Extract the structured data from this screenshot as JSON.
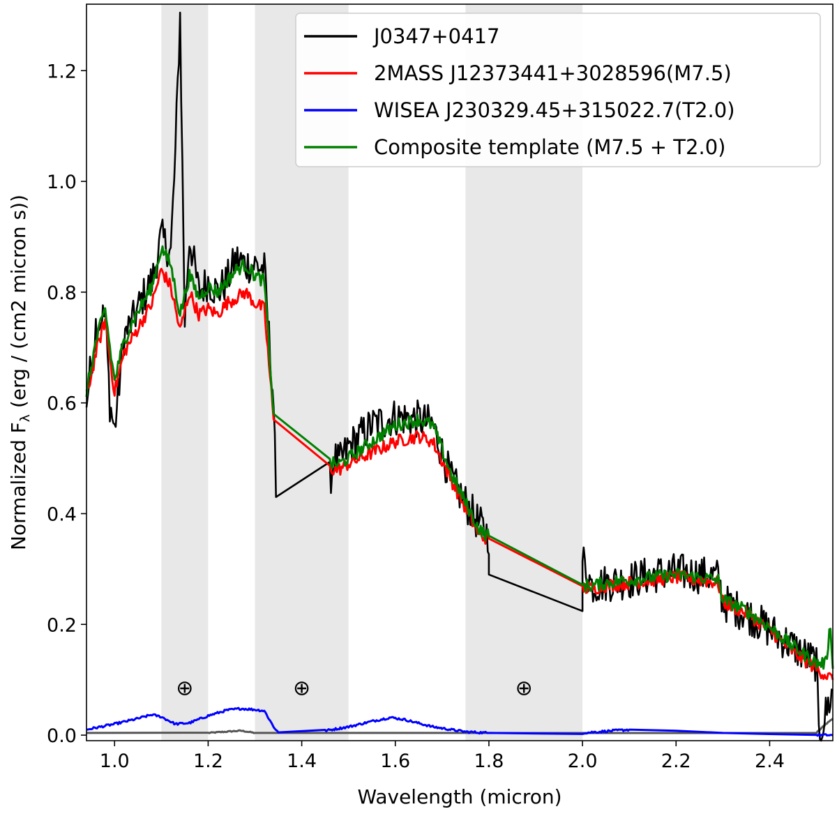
{
  "chart_data": {
    "type": "line",
    "title": "",
    "xlabel": "Wavelength (micron)",
    "ylabel": "Normalized Fλ (erg / (cm2 micron s))",
    "ylabel_main": "Normalized F",
    "ylabel_sub": "λ",
    "ylabel_rest": " (erg / (cm2 micron s))",
    "xlim": [
      0.94,
      2.535
    ],
    "ylim": [
      -0.01,
      1.32
    ],
    "xticks": [
      1.0,
      1.2,
      1.4,
      1.6,
      1.8,
      2.0,
      2.2,
      2.4
    ],
    "xtick_labels": [
      "1.0",
      "1.2",
      "1.4",
      "1.6",
      "1.8",
      "2.0",
      "2.2",
      "2.4"
    ],
    "yticks": [
      0.0,
      0.2,
      0.4,
      0.6,
      0.8,
      1.0,
      1.2
    ],
    "ytick_labels": [
      "0.0",
      "0.2",
      "0.4",
      "0.6",
      "0.8",
      "1.0",
      "1.2"
    ],
    "grid": false,
    "legend_position": "top-right",
    "shaded_bands": [
      {
        "x0": 1.1,
        "x1": 1.2,
        "marker": "⊕",
        "marker_x": 1.15,
        "marker_y": 0.085
      },
      {
        "x0": 1.3,
        "x1": 1.5,
        "marker": "⊕",
        "marker_x": 1.4,
        "marker_y": 0.085
      },
      {
        "x0": 1.75,
        "x1": 2.0,
        "marker": "⊕",
        "marker_x": 1.875,
        "marker_y": 0.085
      }
    ],
    "band_color": "#e8e8e8",
    "series": [
      {
        "name": "J0347+0417",
        "color": "#000000",
        "noise": 0.035,
        "points": [
          [
            0.94,
            0.6
          ],
          [
            0.96,
            0.74
          ],
          [
            0.98,
            0.76
          ],
          [
            0.99,
            0.6
          ],
          [
            1.0,
            0.55
          ],
          [
            1.02,
            0.72
          ],
          [
            1.04,
            0.75
          ],
          [
            1.06,
            0.79
          ],
          [
            1.08,
            0.82
          ],
          [
            1.1,
            0.9
          ],
          [
            1.12,
            0.87
          ],
          [
            1.13,
            1.05
          ],
          [
            1.14,
            1.3
          ],
          [
            1.15,
            0.75
          ],
          [
            1.16,
            0.9
          ],
          [
            1.18,
            0.8
          ],
          [
            1.2,
            0.82
          ],
          [
            1.22,
            0.8
          ],
          [
            1.24,
            0.82
          ],
          [
            1.26,
            0.86
          ],
          [
            1.28,
            0.85
          ],
          [
            1.3,
            0.85
          ],
          [
            1.32,
            0.84
          ],
          [
            1.34,
            0.6
          ],
          [
            1.345,
            0.43
          ],
          [
            1.46,
            0.46
          ],
          [
            1.47,
            0.5
          ],
          [
            1.48,
            0.49
          ],
          [
            1.5,
            0.52
          ],
          [
            1.55,
            0.56
          ],
          [
            1.6,
            0.575
          ],
          [
            1.65,
            0.57
          ],
          [
            1.68,
            0.56
          ],
          [
            1.72,
            0.46
          ],
          [
            1.78,
            0.38
          ],
          [
            1.8,
            0.36
          ],
          [
            1.8,
            0.29
          ],
          [
            2.0,
            0.2
          ],
          [
            2.0,
            0.32
          ],
          [
            2.02,
            0.27
          ],
          [
            2.05,
            0.275
          ],
          [
            2.1,
            0.28
          ],
          [
            2.15,
            0.29
          ],
          [
            2.2,
            0.295
          ],
          [
            2.25,
            0.29
          ],
          [
            2.29,
            0.285
          ],
          [
            2.3,
            0.24
          ],
          [
            2.35,
            0.22
          ],
          [
            2.4,
            0.19
          ],
          [
            2.45,
            0.16
          ],
          [
            2.5,
            0.13
          ],
          [
            2.505,
            0.0
          ],
          [
            2.535,
            0.08
          ]
        ]
      },
      {
        "name": "2MASS J12373441+3028596(M7.5)",
        "color": "#ff0000",
        "noise": 0.012,
        "points": [
          [
            0.94,
            0.61
          ],
          [
            0.96,
            0.69
          ],
          [
            0.98,
            0.75
          ],
          [
            0.99,
            0.68
          ],
          [
            1.0,
            0.62
          ],
          [
            1.02,
            0.69
          ],
          [
            1.04,
            0.72
          ],
          [
            1.06,
            0.75
          ],
          [
            1.08,
            0.78
          ],
          [
            1.1,
            0.84
          ],
          [
            1.12,
            0.81
          ],
          [
            1.14,
            0.73
          ],
          [
            1.16,
            0.8
          ],
          [
            1.18,
            0.76
          ],
          [
            1.2,
            0.77
          ],
          [
            1.22,
            0.76
          ],
          [
            1.24,
            0.78
          ],
          [
            1.26,
            0.79
          ],
          [
            1.28,
            0.8
          ],
          [
            1.3,
            0.78
          ],
          [
            1.32,
            0.77
          ],
          [
            1.34,
            0.57
          ],
          [
            1.46,
            0.48
          ],
          [
            1.48,
            0.48
          ],
          [
            1.5,
            0.49
          ],
          [
            1.55,
            0.51
          ],
          [
            1.6,
            0.53
          ],
          [
            1.65,
            0.54
          ],
          [
            1.68,
            0.53
          ],
          [
            1.72,
            0.46
          ],
          [
            1.78,
            0.36
          ],
          [
            1.8,
            0.355
          ],
          [
            2.0,
            0.265
          ],
          [
            2.02,
            0.265
          ],
          [
            2.05,
            0.27
          ],
          [
            2.1,
            0.275
          ],
          [
            2.15,
            0.28
          ],
          [
            2.2,
            0.285
          ],
          [
            2.25,
            0.28
          ],
          [
            2.29,
            0.275
          ],
          [
            2.3,
            0.24
          ],
          [
            2.35,
            0.22
          ],
          [
            2.4,
            0.19
          ],
          [
            2.45,
            0.15
          ],
          [
            2.5,
            0.12
          ],
          [
            2.535,
            0.1
          ]
        ]
      },
      {
        "name": "WISEA J230329.45+315022.7(T2.0)",
        "color": "#0000ff",
        "noise": 0.002,
        "points": [
          [
            0.94,
            0.01
          ],
          [
            1.0,
            0.02
          ],
          [
            1.05,
            0.03
          ],
          [
            1.08,
            0.037
          ],
          [
            1.1,
            0.033
          ],
          [
            1.13,
            0.02
          ],
          [
            1.16,
            0.022
          ],
          [
            1.2,
            0.035
          ],
          [
            1.24,
            0.045
          ],
          [
            1.27,
            0.048
          ],
          [
            1.3,
            0.046
          ],
          [
            1.32,
            0.044
          ],
          [
            1.34,
            0.015
          ],
          [
            1.35,
            0.005
          ],
          [
            1.45,
            0.008
          ],
          [
            1.5,
            0.015
          ],
          [
            1.55,
            0.025
          ],
          [
            1.59,
            0.032
          ],
          [
            1.62,
            0.028
          ],
          [
            1.68,
            0.015
          ],
          [
            1.75,
            0.006
          ],
          [
            1.8,
            0.004
          ],
          [
            2.0,
            0.004
          ],
          [
            2.05,
            0.007
          ],
          [
            2.1,
            0.01
          ],
          [
            2.2,
            0.008
          ],
          [
            2.3,
            0.004
          ],
          [
            2.4,
            0.002
          ],
          [
            2.5,
            0.0
          ],
          [
            2.535,
            0.0
          ]
        ]
      },
      {
        "name": "Composite template (M7.5 + T2.0)",
        "color": "#008000",
        "noise": 0.012,
        "points": [
          [
            0.94,
            0.62
          ],
          [
            0.96,
            0.71
          ],
          [
            0.98,
            0.77
          ],
          [
            0.99,
            0.7
          ],
          [
            1.0,
            0.64
          ],
          [
            1.02,
            0.71
          ],
          [
            1.04,
            0.75
          ],
          [
            1.06,
            0.78
          ],
          [
            1.08,
            0.81
          ],
          [
            1.1,
            0.88
          ],
          [
            1.12,
            0.85
          ],
          [
            1.14,
            0.76
          ],
          [
            1.16,
            0.83
          ],
          [
            1.18,
            0.79
          ],
          [
            1.2,
            0.81
          ],
          [
            1.22,
            0.8
          ],
          [
            1.24,
            0.82
          ],
          [
            1.26,
            0.84
          ],
          [
            1.28,
            0.85
          ],
          [
            1.3,
            0.83
          ],
          [
            1.32,
            0.82
          ],
          [
            1.34,
            0.58
          ],
          [
            1.46,
            0.49
          ],
          [
            1.48,
            0.49
          ],
          [
            1.5,
            0.5
          ],
          [
            1.55,
            0.53
          ],
          [
            1.6,
            0.56
          ],
          [
            1.65,
            0.57
          ],
          [
            1.68,
            0.56
          ],
          [
            1.72,
            0.47
          ],
          [
            1.78,
            0.37
          ],
          [
            1.8,
            0.36
          ],
          [
            2.0,
            0.27
          ],
          [
            2.02,
            0.27
          ],
          [
            2.05,
            0.275
          ],
          [
            2.1,
            0.28
          ],
          [
            2.15,
            0.285
          ],
          [
            2.2,
            0.29
          ],
          [
            2.25,
            0.285
          ],
          [
            2.29,
            0.28
          ],
          [
            2.3,
            0.245
          ],
          [
            2.35,
            0.225
          ],
          [
            2.4,
            0.195
          ],
          [
            2.45,
            0.16
          ],
          [
            2.5,
            0.13
          ],
          [
            2.52,
            0.13
          ],
          [
            2.53,
            0.2
          ],
          [
            2.535,
            0.12
          ]
        ]
      }
    ],
    "baseline": {
      "color": "#555555",
      "points": [
        [
          0.94,
          0.004
        ],
        [
          1.2,
          0.004
        ],
        [
          1.27,
          0.008
        ],
        [
          1.3,
          0.004
        ],
        [
          2.5,
          0.004
        ],
        [
          2.52,
          0.02
        ],
        [
          2.535,
          0.03
        ]
      ]
    }
  }
}
